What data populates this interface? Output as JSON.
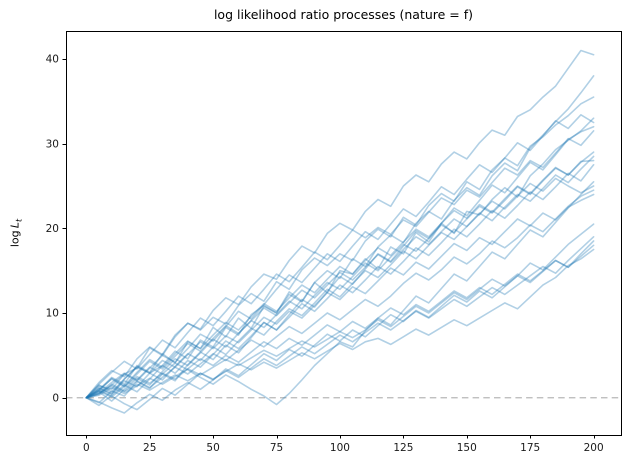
{
  "chart_data": {
    "type": "line",
    "title": "log likelihood ratio processes (nature = f)",
    "xlabel": "",
    "ylabel": "log L_t",
    "ylabel_parts": {
      "prefix": "log ",
      "variable": "L",
      "subscript": "t"
    },
    "xlim": [
      -8,
      210.8
    ],
    "ylim": [
      -4.4,
      43.3
    ],
    "xticks": [
      0,
      25,
      50,
      75,
      100,
      125,
      150,
      175,
      200
    ],
    "yticks": [
      0,
      10,
      20,
      30,
      40
    ],
    "grid": false,
    "legend": null,
    "line_color": "#1f77b4",
    "line_alpha": 0.35,
    "line_width": 1.6,
    "axis_color": "#000000",
    "tick_label_color": "#1a1a1a",
    "hline": {
      "y": 0,
      "color": "#b8b8b8",
      "dash": [
        6.5,
        4.2
      ],
      "width": 1.2
    },
    "t_step": 5,
    "series": [
      {
        "name": "path-01",
        "values": [
          0,
          1.4,
          1.0,
          2.8,
          3.5,
          5.9,
          5.0,
          7.2,
          8.8,
          8.1,
          10.3,
          11.8,
          11.0,
          13.1,
          14.6,
          14.0,
          16.2,
          17.9,
          17.1,
          19.4,
          20.6,
          19.8,
          22.0,
          23.4,
          22.6,
          25.0,
          26.3,
          25.5,
          27.6,
          29.0,
          28.2,
          30.1,
          31.6,
          31.0,
          33.2,
          34.0,
          35.5,
          36.8,
          38.9,
          41.0,
          40.5
        ]
      },
      {
        "name": "path-02",
        "values": [
          0,
          1.1,
          0.4,
          2.2,
          3.6,
          2.9,
          3.8,
          5.5,
          4.6,
          6.8,
          6.0,
          8.3,
          7.4,
          9.8,
          10.9,
          10.0,
          12.2,
          11.3,
          13.6,
          15.0,
          14.1,
          16.4,
          15.5,
          17.8,
          19.2,
          18.3,
          20.6,
          22.0,
          21.1,
          23.3,
          24.8,
          23.9,
          26.2,
          27.7,
          26.8,
          29.5,
          31.0,
          32.6,
          34.1,
          36.0,
          38.0
        ]
      },
      {
        "name": "path-03",
        "values": [
          0,
          1.8,
          3.2,
          2.5,
          4.6,
          6.0,
          5.1,
          7.4,
          8.8,
          8.0,
          9.5,
          8.7,
          10.9,
          12.3,
          11.4,
          13.7,
          12.8,
          15.1,
          16.5,
          15.6,
          17.0,
          16.2,
          18.5,
          19.9,
          19.0,
          21.3,
          20.4,
          22.7,
          24.1,
          23.2,
          25.5,
          24.6,
          26.9,
          28.3,
          27.4,
          29.7,
          30.8,
          32.2,
          33.3,
          34.7,
          35.5
        ]
      },
      {
        "name": "path-04",
        "values": [
          0,
          0.9,
          2.4,
          1.6,
          3.8,
          3.0,
          5.2,
          4.1,
          6.6,
          5.8,
          8.3,
          7.2,
          9.4,
          8.2,
          10.8,
          10.0,
          12.5,
          11.4,
          13.6,
          12.4,
          15.0,
          14.6,
          16.4,
          15.2,
          17.8,
          17.0,
          19.5,
          18.4,
          20.6,
          19.4,
          22.0,
          21.6,
          23.4,
          24.8,
          23.7,
          26.2,
          27.6,
          29.3,
          30.4,
          31.5,
          33.0
        ]
      },
      {
        "name": "path-05",
        "values": [
          0,
          0.5,
          1.5,
          2.8,
          2.0,
          3.5,
          5.0,
          4.2,
          5.8,
          7.5,
          6.7,
          8.4,
          10.2,
          9.3,
          11.0,
          12.8,
          14.5,
          13.6,
          15.3,
          17.0,
          16.1,
          17.9,
          19.6,
          18.7,
          20.5,
          22.3,
          21.4,
          23.1,
          24.9,
          24.0,
          25.8,
          27.5,
          26.6,
          28.3,
          30.1,
          29.2,
          30.9,
          32.7,
          31.8,
          33.4,
          32.5
        ]
      },
      {
        "name": "path-06",
        "values": [
          0,
          -0.6,
          0.8,
          0.2,
          1.9,
          1.1,
          2.8,
          2.0,
          3.9,
          5.4,
          4.5,
          6.2,
          5.3,
          7.1,
          8.9,
          8.0,
          9.8,
          11.6,
          10.7,
          12.5,
          14.3,
          13.4,
          15.2,
          17.0,
          16.1,
          17.9,
          19.7,
          18.8,
          20.6,
          22.4,
          21.5,
          23.3,
          25.1,
          24.2,
          26.0,
          27.8,
          26.9,
          28.7,
          30.5,
          31.4,
          32.0
        ]
      },
      {
        "name": "path-07",
        "values": [
          0,
          1.6,
          3.0,
          4.3,
          3.4,
          5.1,
          6.8,
          5.9,
          7.7,
          9.4,
          8.5,
          10.2,
          12.0,
          11.1,
          12.8,
          14.6,
          13.7,
          15.4,
          17.2,
          16.3,
          18.0,
          19.8,
          18.9,
          20.1,
          19.3,
          21.0,
          20.2,
          21.9,
          23.6,
          22.8,
          24.5,
          23.7,
          25.4,
          27.1,
          26.3,
          28.0,
          27.2,
          28.9,
          30.6,
          29.8,
          31.5
        ]
      },
      {
        "name": "path-08",
        "values": [
          0,
          0.7,
          -0.4,
          1.0,
          2.3,
          1.5,
          3.1,
          4.6,
          3.8,
          5.3,
          6.9,
          6.0,
          7.6,
          9.1,
          8.3,
          9.8,
          11.4,
          10.5,
          12.1,
          13.6,
          12.8,
          14.3,
          15.9,
          15.0,
          16.6,
          18.1,
          17.3,
          18.8,
          20.4,
          19.5,
          21.1,
          22.6,
          21.8,
          23.3,
          24.9,
          24.0,
          25.6,
          27.1,
          26.3,
          27.8,
          29.0
        ]
      },
      {
        "name": "path-09",
        "values": [
          0,
          1.2,
          0.5,
          2.0,
          1.3,
          2.9,
          2.1,
          3.7,
          5.2,
          4.4,
          6.0,
          5.1,
          6.7,
          8.2,
          7.4,
          9.0,
          10.5,
          9.7,
          11.2,
          12.8,
          11.9,
          13.5,
          15.0,
          14.2,
          15.7,
          17.3,
          16.4,
          18.0,
          19.5,
          18.7,
          20.2,
          21.8,
          20.9,
          22.5,
          24.0,
          23.2,
          24.7,
          26.3,
          25.4,
          27.0,
          28.5
        ]
      },
      {
        "name": "path-10",
        "values": [
          0,
          0.8,
          2.3,
          1.4,
          3.0,
          4.5,
          3.6,
          5.2,
          6.7,
          5.8,
          7.4,
          8.9,
          8.0,
          9.6,
          11.1,
          10.2,
          11.8,
          13.3,
          12.4,
          14.0,
          15.5,
          14.6,
          16.2,
          17.7,
          16.8,
          18.4,
          19.9,
          19.0,
          20.6,
          22.1,
          21.2,
          22.8,
          21.9,
          23.5,
          25.0,
          24.1,
          25.7,
          27.2,
          26.3,
          27.9,
          28.0
        ]
      },
      {
        "name": "path-11",
        "values": [
          0,
          -0.9,
          0.3,
          1.5,
          0.7,
          2.2,
          3.8,
          2.9,
          4.4,
          3.6,
          5.1,
          6.7,
          5.8,
          7.3,
          8.9,
          8.0,
          9.5,
          11.1,
          10.2,
          11.7,
          13.3,
          12.4,
          13.9,
          15.5,
          14.6,
          16.1,
          17.7,
          16.8,
          18.3,
          19.9,
          19.0,
          20.5,
          22.1,
          21.2,
          22.7,
          24.3,
          23.4,
          24.9,
          26.5,
          25.6,
          27.5
        ]
      },
      {
        "name": "path-12",
        "values": [
          0,
          0.6,
          1.8,
          2.9,
          2.1,
          3.6,
          2.8,
          4.1,
          3.3,
          2.4,
          1.6,
          2.7,
          1.9,
          1.0,
          0.2,
          -0.8,
          0.5,
          2.1,
          3.8,
          5.2,
          6.6,
          6.0,
          7.9,
          9.4,
          8.6,
          10.3,
          12.0,
          11.2,
          12.9,
          14.6,
          13.8,
          15.5,
          17.2,
          16.4,
          18.1,
          19.8,
          19.0,
          20.7,
          22.4,
          24.0,
          25.5
        ]
      },
      {
        "name": "path-13",
        "values": [
          0,
          1.0,
          2.2,
          1.3,
          2.8,
          4.3,
          3.4,
          4.9,
          6.4,
          5.5,
          7.0,
          8.5,
          7.6,
          9.1,
          10.6,
          9.7,
          11.2,
          12.7,
          11.8,
          13.3,
          14.8,
          13.9,
          15.4,
          16.9,
          16.0,
          17.5,
          19.0,
          18.1,
          19.6,
          21.1,
          20.2,
          21.7,
          23.2,
          22.3,
          23.8,
          25.3,
          24.4,
          25.9,
          25.0,
          24.2,
          25.0
        ]
      },
      {
        "name": "path-14",
        "values": [
          0,
          0.4,
          1.6,
          0.8,
          2.0,
          1.2,
          2.4,
          3.6,
          2.8,
          4.0,
          5.2,
          4.4,
          5.6,
          6.8,
          6.0,
          7.2,
          8.4,
          7.6,
          8.8,
          10.0,
          9.2,
          10.4,
          11.6,
          10.8,
          12.0,
          13.5,
          14.7,
          13.9,
          15.1,
          16.6,
          15.8,
          17.0,
          18.5,
          17.7,
          18.9,
          20.4,
          19.6,
          21.1,
          22.6,
          23.8,
          24.5
        ]
      },
      {
        "name": "path-15",
        "values": [
          0,
          1.5,
          0.7,
          2.2,
          3.7,
          2.9,
          4.4,
          3.6,
          5.1,
          6.6,
          5.8,
          7.3,
          6.5,
          8.0,
          9.5,
          8.7,
          10.2,
          9.4,
          10.9,
          12.4,
          11.6,
          13.1,
          12.3,
          13.8,
          15.3,
          14.5,
          16.0,
          15.2,
          16.7,
          18.2,
          17.4,
          18.9,
          18.1,
          19.6,
          21.1,
          20.3,
          21.8,
          21.0,
          22.5,
          23.3,
          24.0
        ]
      },
      {
        "name": "path-16",
        "values": [
          0,
          0.3,
          1.2,
          0.5,
          1.4,
          2.3,
          1.6,
          2.5,
          3.4,
          2.7,
          3.6,
          4.5,
          3.8,
          4.7,
          5.6,
          4.9,
          5.8,
          6.7,
          6.0,
          6.9,
          7.8,
          7.1,
          8.0,
          9.2,
          8.4,
          9.6,
          10.8,
          10.0,
          11.2,
          12.4,
          11.6,
          12.8,
          14.0,
          13.2,
          14.4,
          15.9,
          15.1,
          16.6,
          18.1,
          19.3,
          20.5
        ]
      },
      {
        "name": "path-17",
        "values": [
          0,
          -0.5,
          -1.2,
          -1.8,
          -0.6,
          0.4,
          -0.3,
          0.9,
          1.8,
          1.0,
          2.1,
          3.2,
          2.4,
          3.5,
          4.6,
          3.8,
          4.9,
          6.0,
          5.2,
          6.3,
          7.4,
          6.6,
          7.7,
          8.8,
          8.0,
          9.1,
          10.2,
          9.4,
          10.5,
          11.6,
          10.8,
          11.9,
          13.0,
          12.2,
          13.3,
          14.4,
          15.5,
          14.7,
          16.2,
          17.6,
          19.0
        ]
      },
      {
        "name": "path-18",
        "values": [
          0,
          0.8,
          0.1,
          1.3,
          2.5,
          1.7,
          2.9,
          2.2,
          3.4,
          4.6,
          3.8,
          5.0,
          4.2,
          5.4,
          6.6,
          5.8,
          7.0,
          6.2,
          7.4,
          8.6,
          7.8,
          9.0,
          8.2,
          9.4,
          10.6,
          9.8,
          11.0,
          10.2,
          11.4,
          12.6,
          11.8,
          13.0,
          12.2,
          13.4,
          14.6,
          13.8,
          15.0,
          16.2,
          15.4,
          17.0,
          18.5
        ]
      },
      {
        "name": "path-19",
        "values": [
          0,
          0.9,
          0.2,
          -0.7,
          -1.4,
          -0.2,
          1.1,
          0.3,
          1.6,
          2.9,
          2.1,
          3.4,
          2.6,
          3.9,
          5.2,
          4.4,
          5.7,
          4.9,
          6.2,
          7.5,
          6.7,
          8.0,
          7.2,
          8.5,
          9.8,
          9.0,
          10.3,
          9.5,
          10.8,
          12.1,
          11.3,
          12.6,
          11.8,
          13.1,
          14.4,
          13.6,
          14.9,
          16.2,
          15.4,
          16.7,
          18.0
        ]
      },
      {
        "name": "path-20",
        "values": [
          0,
          0.5,
          1.4,
          0.7,
          1.6,
          0.9,
          1.8,
          2.7,
          2.0,
          2.9,
          2.2,
          3.1,
          4.0,
          3.3,
          4.2,
          3.5,
          4.4,
          5.3,
          4.6,
          5.5,
          6.4,
          5.7,
          6.6,
          7.0,
          6.3,
          7.2,
          8.1,
          7.4,
          8.3,
          9.2,
          8.5,
          9.4,
          10.3,
          11.2,
          10.5,
          11.9,
          13.3,
          14.2,
          15.6,
          16.4,
          17.5
        ]
      }
    ]
  }
}
